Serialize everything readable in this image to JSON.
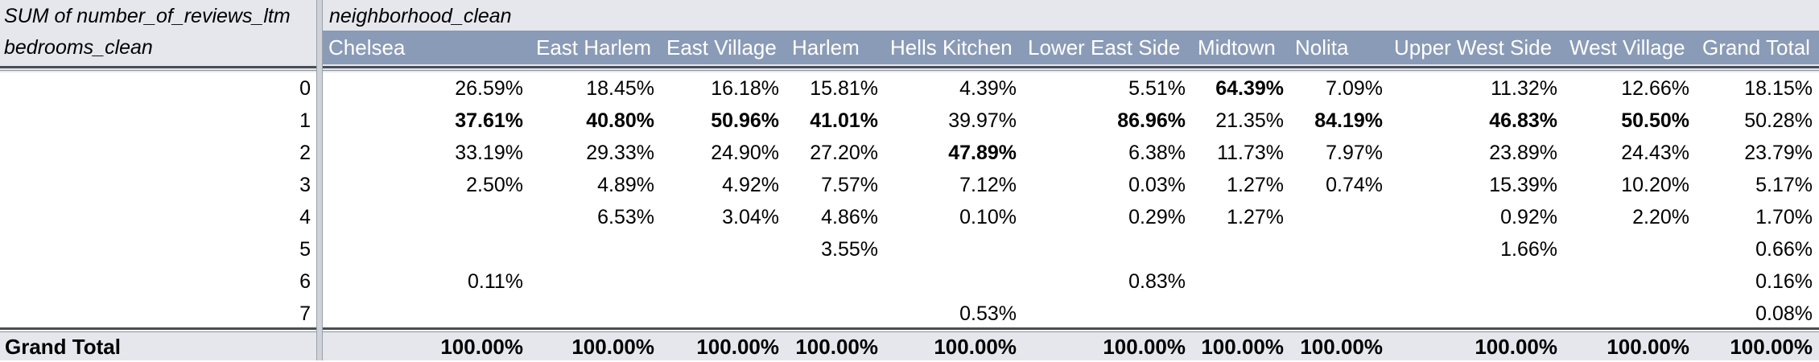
{
  "pivot": {
    "value_field": "SUM of number_of_reviews_ltm",
    "column_field": "neighborhood_clean",
    "row_field": "bedrooms_clean",
    "columns": [
      "Chelsea",
      "East Harlem",
      "East Village",
      "Harlem",
      "Hells Kitchen",
      "Lower East Side",
      "Midtown",
      "Nolita",
      "Upper West Side",
      "West Village",
      "Grand Total"
    ],
    "rows": [
      {
        "label": "0",
        "cells": [
          "26.59%",
          "18.45%",
          "16.18%",
          "15.81%",
          "4.39%",
          "5.51%",
          "64.39%",
          "7.09%",
          "11.32%",
          "12.66%",
          "18.15%"
        ],
        "bold": [
          false,
          false,
          false,
          false,
          false,
          false,
          true,
          false,
          false,
          false,
          false
        ]
      },
      {
        "label": "1",
        "cells": [
          "37.61%",
          "40.80%",
          "50.96%",
          "41.01%",
          "39.97%",
          "86.96%",
          "21.35%",
          "84.19%",
          "46.83%",
          "50.50%",
          "50.28%"
        ],
        "bold": [
          true,
          true,
          true,
          true,
          false,
          true,
          false,
          true,
          true,
          true,
          false
        ]
      },
      {
        "label": "2",
        "cells": [
          "33.19%",
          "29.33%",
          "24.90%",
          "27.20%",
          "47.89%",
          "6.38%",
          "11.73%",
          "7.97%",
          "23.89%",
          "24.43%",
          "23.79%"
        ],
        "bold": [
          false,
          false,
          false,
          false,
          true,
          false,
          false,
          false,
          false,
          false,
          false
        ]
      },
      {
        "label": "3",
        "cells": [
          "2.50%",
          "4.89%",
          "4.92%",
          "7.57%",
          "7.12%",
          "0.03%",
          "1.27%",
          "0.74%",
          "15.39%",
          "10.20%",
          "5.17%"
        ],
        "bold": [
          false,
          false,
          false,
          false,
          false,
          false,
          false,
          false,
          false,
          false,
          false
        ]
      },
      {
        "label": "4",
        "cells": [
          "",
          "6.53%",
          "3.04%",
          "4.86%",
          "0.10%",
          "0.29%",
          "1.27%",
          "",
          "0.92%",
          "2.20%",
          "1.70%"
        ],
        "bold": [
          false,
          false,
          false,
          false,
          false,
          false,
          false,
          false,
          false,
          false,
          false
        ]
      },
      {
        "label": "5",
        "cells": [
          "",
          "",
          "",
          "3.55%",
          "",
          "",
          "",
          "",
          "1.66%",
          "",
          "0.66%"
        ],
        "bold": [
          false,
          false,
          false,
          false,
          false,
          false,
          false,
          false,
          false,
          false,
          false
        ]
      },
      {
        "label": "6",
        "cells": [
          "0.11%",
          "",
          "",
          "",
          "",
          "0.83%",
          "",
          "",
          "",
          "",
          "0.16%"
        ],
        "bold": [
          false,
          false,
          false,
          false,
          false,
          false,
          false,
          false,
          false,
          false,
          false
        ]
      },
      {
        "label": "7",
        "cells": [
          "",
          "",
          "",
          "",
          "0.53%",
          "",
          "",
          "",
          "",
          "",
          "0.08%"
        ],
        "bold": [
          false,
          false,
          false,
          false,
          false,
          false,
          false,
          false,
          false,
          false,
          false
        ]
      }
    ],
    "grand_total": {
      "label": "Grand Total",
      "cells": [
        "100.00%",
        "100.00%",
        "100.00%",
        "100.00%",
        "100.00%",
        "100.00%",
        "100.00%",
        "100.00%",
        "100.00%",
        "100.00%",
        "100.00%"
      ]
    }
  },
  "colors": {
    "header_band": "#8a9bb7",
    "sheet_gray": "#e5e7ed"
  }
}
